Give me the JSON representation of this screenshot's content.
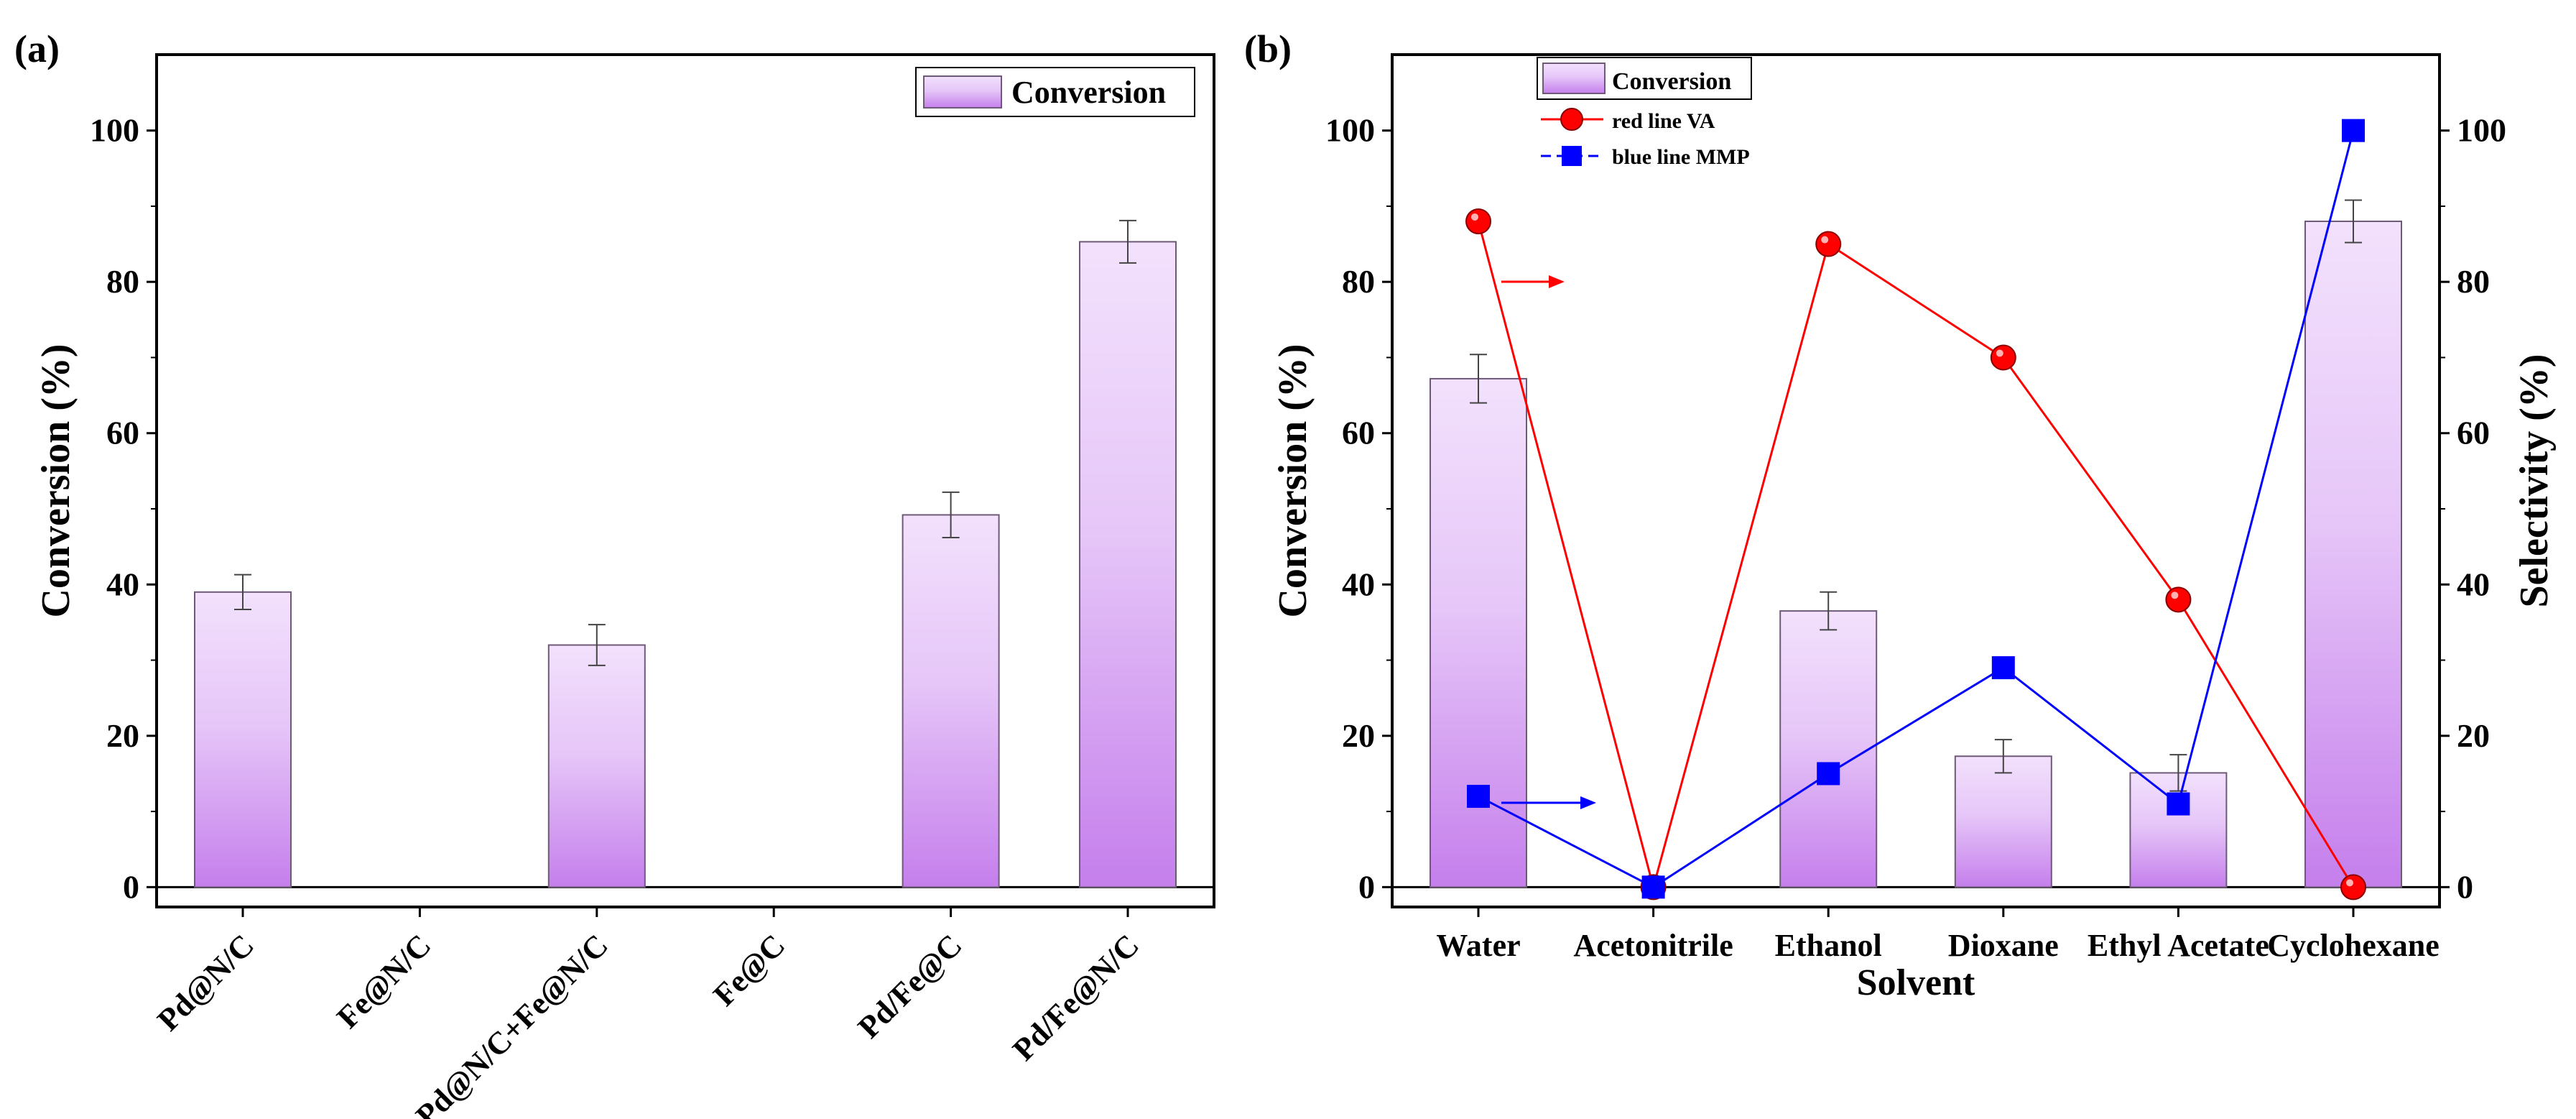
{
  "colors": {
    "bar_top": "#f2e1fc",
    "bar_bottom": "#c57fec",
    "bar_stroke": "#6e5a78",
    "red": "#ff0000",
    "blue": "#0000ff"
  },
  "chart_data": [
    {
      "panel_label": "(a)",
      "type": "bar",
      "ylabel": "Conversion (%)",
      "xlabel": "",
      "ylim": [
        -5,
        105
      ],
      "yticks": [
        "0",
        "20",
        "40",
        "60",
        "80",
        "100"
      ],
      "categories": [
        "Pd@N/C",
        "Fe@N/C",
        "Pd@N/C+Fe@N/C",
        "Fe@C",
        "Pd/Fe@C",
        "Pd/Fe@N/C"
      ],
      "series": [
        {
          "name": "Conversion",
          "values": [
            39,
            0,
            32,
            0,
            49.2,
            85.3
          ],
          "errors": [
            2.3,
            0,
            2.7,
            0,
            3.0,
            2.8
          ]
        }
      ],
      "legend": {
        "position": "top-right",
        "entries": [
          "Conversion"
        ]
      }
    },
    {
      "panel_label": "(b)",
      "type": "bar+line",
      "xlabel": "Solvent",
      "ylabel": "Conversion (%)",
      "ylabel_right": "Selectivity (%)",
      "ylim": [
        -5,
        105
      ],
      "yticks": [
        "0",
        "20",
        "40",
        "60",
        "80",
        "100"
      ],
      "categories": [
        "Water",
        "Acetonitrile",
        "Ethanol",
        "Dioxane",
        "Ethyl Acetate",
        "Cyclohexane"
      ],
      "series": [
        {
          "name": "Conversion",
          "type": "bar",
          "axis": "left",
          "values": [
            67.2,
            0,
            36.5,
            17.3,
            15.1,
            88
          ],
          "errors": [
            3.2,
            0,
            2.5,
            2.2,
            2.4,
            2.8
          ]
        },
        {
          "name": "red line VA",
          "type": "line",
          "axis": "right",
          "marker": "circle",
          "values": [
            88,
            0,
            85,
            70,
            38,
            0
          ]
        },
        {
          "name": "blue line MMP",
          "type": "line",
          "axis": "right",
          "marker": "square",
          "values": [
            12,
            0,
            15,
            29,
            11,
            100
          ]
        }
      ],
      "legend": {
        "position": "top-left",
        "entries": [
          "Conversion",
          "red line VA",
          "blue line MMP"
        ]
      }
    }
  ]
}
